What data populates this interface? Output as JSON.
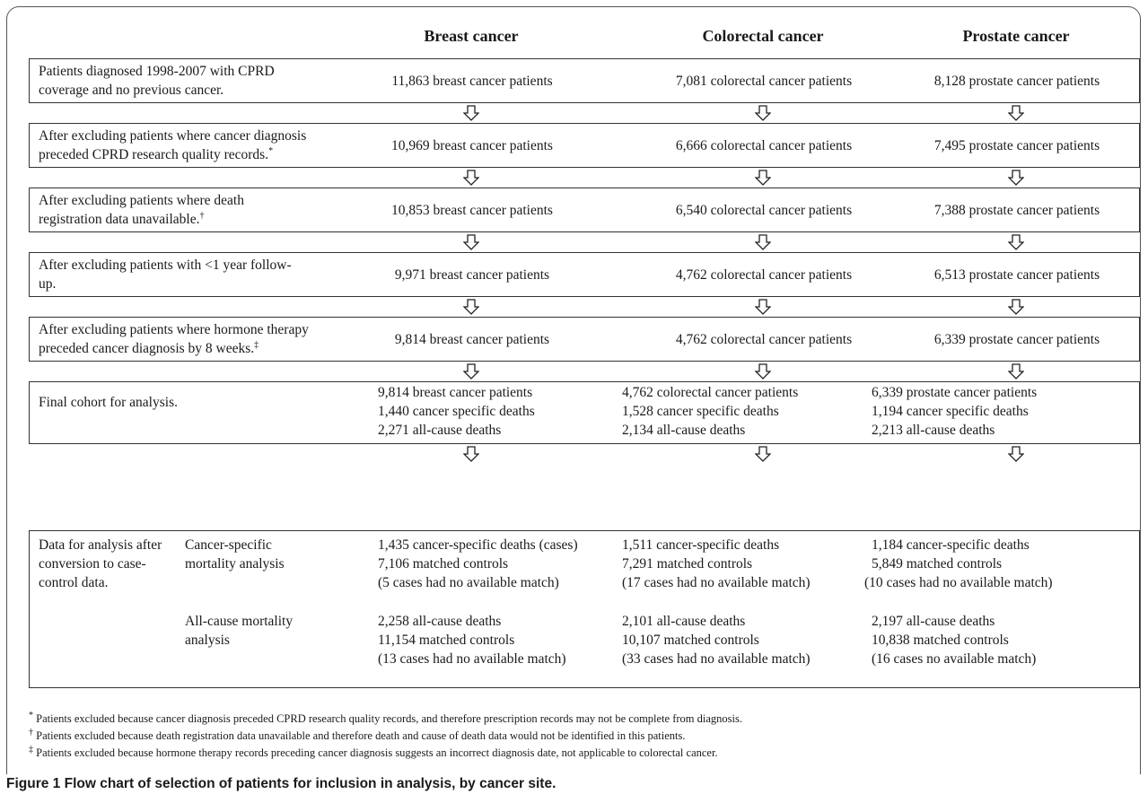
{
  "columns": [
    "Breast cancer",
    "Colorectal cancer",
    "Prostate cancer"
  ],
  "steps": [
    {
      "label_lines": [
        "Patients diagnosed 1998-2007 with CPRD",
        "coverage and no previous cancer."
      ],
      "mark": "",
      "values": [
        "11,863 breast cancer patients",
        "7,081 colorectal cancer patients",
        "8,128 prostate cancer patients"
      ]
    },
    {
      "label_lines": [
        "After excluding patients where cancer diagnosis",
        "preceded CPRD research quality records."
      ],
      "mark": "*",
      "values": [
        "10,969 breast cancer patients",
        "6,666 colorectal cancer patients",
        "7,495 prostate cancer patients"
      ]
    },
    {
      "label_lines": [
        "After excluding patients where death",
        "registration data unavailable."
      ],
      "mark": "†",
      "values": [
        "10,853 breast cancer patients",
        "6,540 colorectal cancer patients",
        "7,388 prostate cancer patients"
      ]
    },
    {
      "label_lines": [
        "After excluding patients with <1 year follow-",
        "up."
      ],
      "mark": "",
      "values": [
        "9,971 breast cancer patients",
        "4,762 colorectal cancer patients",
        "6,513 prostate cancer patients"
      ]
    },
    {
      "label_lines": [
        "After excluding patients where hormone therapy",
        "preceded cancer diagnosis by 8 weeks."
      ],
      "mark": "‡",
      "values": [
        "9,814 breast cancer patients",
        "4,762 colorectal cancer patients",
        "6,339 prostate cancer patients"
      ]
    }
  ],
  "final": {
    "label": "Final cohort for analysis.",
    "columns": [
      [
        "9,814 breast cancer patients",
        "1,440 cancer specific deaths",
        "2,271 all-cause deaths"
      ],
      [
        "4,762 colorectal cancer patients",
        "1,528 cancer specific deaths",
        "2,134 all-cause deaths"
      ],
      [
        "6,339 prostate cancer patients",
        "1,194 cancer specific deaths",
        "2,213 all-cause deaths"
      ]
    ]
  },
  "casecontrol": {
    "label_lines": [
      "Data for analysis after",
      "conversion to case-",
      "control data."
    ],
    "analyses": [
      {
        "label_lines": [
          "Cancer-specific",
          "mortality analysis"
        ],
        "columns": [
          [
            "1,435 cancer-specific deaths (cases)",
            "7,106 matched controls",
            "(5 cases had no available match)"
          ],
          [
            "1,511 cancer-specific deaths",
            "7,291 matched controls",
            "(17 cases had no available match)"
          ],
          [
            "1,184 cancer-specific deaths",
            "5,849 matched controls",
            "(10 cases had no available match)"
          ]
        ]
      },
      {
        "label_lines": [
          "All-cause mortality",
          "analysis"
        ],
        "columns": [
          [
            "2,258 all-cause deaths",
            "11,154 matched controls",
            "(13 cases had no available match)"
          ],
          [
            "2,101 all-cause deaths",
            "10,107 matched controls",
            "(33 cases had no available match)"
          ],
          [
            "2,197 all-cause deaths",
            "10,838 matched controls",
            "(16 cases no available match)"
          ]
        ]
      }
    ]
  },
  "footnotes": [
    {
      "mark": "*",
      "text": "Patients excluded because cancer diagnosis preceded CPRD research quality records, and therefore prescription records may not be complete from diagnosis."
    },
    {
      "mark": "†",
      "text": "Patients excluded because death registration data unavailable and therefore death and cause of death data would not be identified in this patients."
    },
    {
      "mark": "‡",
      "text": "Patients excluded because hormone therapy records preceding cancer diagnosis suggests an incorrect diagnosis date, not applicable to colorectal cancer."
    }
  ],
  "caption": "Figure 1 Flow chart of selection of patients for inclusion in analysis, by cancer site."
}
